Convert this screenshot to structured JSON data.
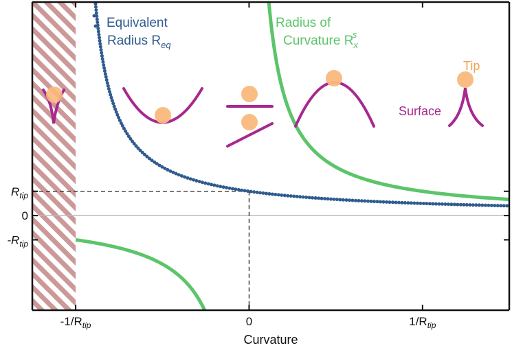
{
  "chart_data": {
    "type": "line",
    "title": "",
    "xlabel": "Curvature",
    "ylabel": "",
    "xlim": [
      -1.25,
      1.5
    ],
    "ylim": [
      -3.9,
      8.8
    ],
    "grid": false,
    "legend": "none",
    "x_ticks": [
      {
        "value": -1,
        "label": "-1/R",
        "sub": "tip"
      },
      {
        "value": 0,
        "label": "0",
        "sub": ""
      },
      {
        "value": 1,
        "label": "1/R",
        "sub": "tip"
      }
    ],
    "y_ticks": [
      {
        "value": 1,
        "label": "R",
        "sub": "tip"
      },
      {
        "value": 0,
        "label": "0",
        "sub": ""
      },
      {
        "value": -1,
        "label": "-R",
        "sub": "tip"
      }
    ],
    "hatched_region": {
      "x_from": -1.25,
      "x_to": -1,
      "color": "#c9908f"
    },
    "reference_lines": {
      "y": 1,
      "x": 0,
      "style": "dashed",
      "zero_line_color": "#bbbbbb"
    },
    "series": [
      {
        "name_parts": [
          "Equivalent",
          "Radius R",
          "eq"
        ],
        "color": "#2f5b8e",
        "style": "dots",
        "formula": "y = 1 / (1 + x)",
        "x": [
          -0.9,
          -0.8,
          -0.7,
          -0.6,
          -0.5,
          -0.4,
          -0.3,
          -0.2,
          -0.1,
          0,
          0.25,
          0.5,
          0.75,
          1.0,
          1.25,
          1.5
        ],
        "y": [
          10.0,
          5.0,
          3.333,
          2.5,
          2.0,
          1.667,
          1.429,
          1.25,
          1.111,
          1.0,
          0.8,
          0.667,
          0.571,
          0.5,
          0.444,
          0.4
        ]
      },
      {
        "name_parts": [
          "Radius of",
          "Curvature R",
          "x",
          "s"
        ],
        "color": "#5cc46a",
        "style": "solid",
        "formula": "y = 1 / x",
        "x": [
          -1.0,
          -0.75,
          -0.5,
          -0.4,
          -0.3,
          -0.25,
          0.1,
          0.15,
          0.2,
          0.3,
          0.5,
          0.75,
          1.0,
          1.25,
          1.5
        ],
        "y": [
          -1.0,
          -1.333,
          -2.0,
          -2.5,
          -3.333,
          -4.0,
          10.0,
          6.667,
          5.0,
          3.333,
          2.0,
          1.333,
          1.0,
          0.8,
          0.667
        ]
      }
    ],
    "annotations": {
      "tip_label": "Tip",
      "surface_label": "Surface",
      "tip_color": "#f9b97c",
      "surface_color": "#a8288f"
    }
  }
}
